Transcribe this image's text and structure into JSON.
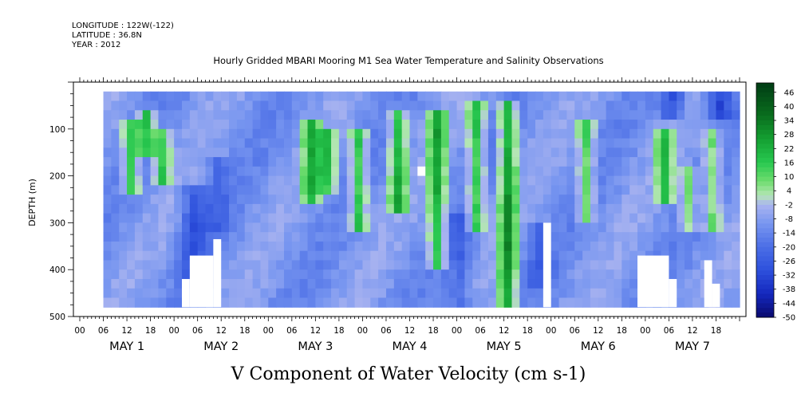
{
  "header": {
    "longitude": "LONGITUDE : 122W(-122)",
    "latitude": "LATITUDE : 36.8N",
    "year": "YEAR : 2012"
  },
  "chart_data": {
    "type": "heatmap",
    "title": "Hourly Gridded MBARI Mooring M1 Sea Water Temperature and Salinity Observations",
    "bottom_title": "V Component of Water Velocity (cm s-1)",
    "ylabel": "DEPTH (m)",
    "y_range": [
      0,
      500
    ],
    "y_inverted": true,
    "y_ticks": [
      "100",
      "200",
      "300",
      "400",
      "500"
    ],
    "x_hour_ticks": [
      "00",
      "06",
      "12",
      "18",
      "00",
      "06",
      "12",
      "18",
      "00",
      "06",
      "12",
      "18",
      "00",
      "06",
      "12",
      "18",
      "00",
      "06",
      "12",
      "18",
      "00",
      "06",
      "12",
      "18",
      "00",
      "06",
      "12",
      "18"
    ],
    "x_day_labels": [
      "MAY   1",
      "MAY   2",
      "MAY   3",
      "MAY   4",
      "MAY   5",
      "MAY   6",
      "MAY   7"
    ],
    "colorbar_labels": [
      "46",
      "40",
      "34",
      "28",
      "22",
      "16",
      "10",
      "4",
      "-2",
      "-8",
      "-14",
      "-20",
      "-26",
      "-32",
      "-38",
      "-44",
      "-50"
    ],
    "colorbar_range": [
      -50,
      50
    ],
    "data_start_hour": 6,
    "data_top_depth": 20,
    "data_bottom_depth": 480,
    "green_bands": [
      {
        "hour": 12,
        "depth_start": 80,
        "depth_end": 230,
        "v": 15
      },
      {
        "hour": 16,
        "depth_start": 60,
        "depth_end": 150,
        "v": 20
      },
      {
        "hour": 20,
        "depth_start": 90,
        "depth_end": 200,
        "v": 12
      },
      {
        "hour": 58,
        "depth_start": 70,
        "depth_end": 250,
        "v": 18
      },
      {
        "hour": 62,
        "depth_start": 100,
        "depth_end": 220,
        "v": 14
      },
      {
        "hour": 70,
        "depth_start": 90,
        "depth_end": 300,
        "v": 16
      },
      {
        "hour": 80,
        "depth_start": 60,
        "depth_end": 260,
        "v": 18
      },
      {
        "hour": 90,
        "depth_start": 60,
        "depth_end": 380,
        "v": 20
      },
      {
        "hour": 100,
        "depth_start": 40,
        "depth_end": 300,
        "v": 16
      },
      {
        "hour": 108,
        "depth_start": 40,
        "depth_end": 470,
        "v": 24
      },
      {
        "hour": 128,
        "depth_start": 80,
        "depth_end": 280,
        "v": 10
      },
      {
        "hour": 148,
        "depth_start": 90,
        "depth_end": 250,
        "v": 14
      },
      {
        "hour": 154,
        "depth_start": 180,
        "depth_end": 300,
        "v": 8
      },
      {
        "hour": 160,
        "depth_start": 100,
        "depth_end": 300,
        "v": 8
      }
    ],
    "blue_patches": [
      {
        "hour": 28,
        "depth_start": 220,
        "depth_end": 420,
        "v": -26
      },
      {
        "hour": 34,
        "depth_start": 150,
        "depth_end": 300,
        "v": -18
      },
      {
        "hour": 96,
        "depth_start": 280,
        "depth_end": 460,
        "v": -20
      },
      {
        "hour": 116,
        "depth_start": 300,
        "depth_end": 420,
        "v": -20
      },
      {
        "hour": 150,
        "depth_start": 20,
        "depth_end": 60,
        "v": -28
      },
      {
        "hour": 162,
        "depth_start": 20,
        "depth_end": 60,
        "v": -30
      }
    ]
  }
}
